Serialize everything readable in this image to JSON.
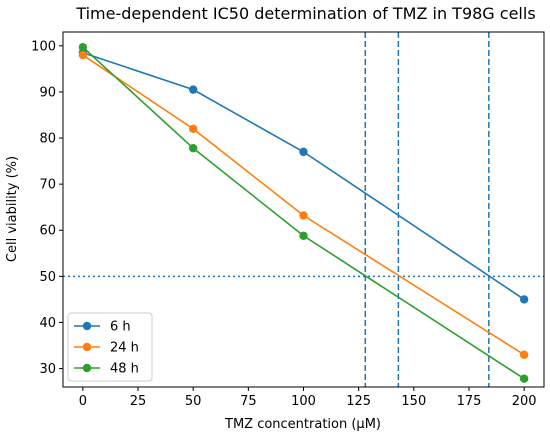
{
  "chart_data": {
    "type": "line",
    "title": "Time-dependent IC50 determination of TMZ in T98G cells",
    "xlabel": "TMZ concentration (µM)",
    "ylabel": "Cell viability (%)",
    "xlim": [
      -9,
      209
    ],
    "ylim": [
      26,
      103
    ],
    "xticks": [
      0,
      25,
      50,
      75,
      100,
      125,
      150,
      175,
      200
    ],
    "yticks": [
      30,
      40,
      50,
      60,
      70,
      80,
      90,
      100
    ],
    "x": [
      0,
      50,
      100,
      200
    ],
    "series": [
      {
        "name": "6 h",
        "color": "#1f77b4",
        "values": [
          98.5,
          90.5,
          77,
          45
        ]
      },
      {
        "name": "24 h",
        "color": "#ff7f0e",
        "values": [
          98,
          82,
          63.2,
          33
        ]
      },
      {
        "name": "48 h",
        "color": "#2ca02c",
        "values": [
          99.7,
          77.8,
          58.8,
          27.8
        ]
      }
    ],
    "reference_lines": {
      "horizontal": [
        {
          "y": 50,
          "style": "dotted",
          "color": "#1f77b4"
        }
      ],
      "vertical": [
        {
          "x": 128,
          "style": "dashed",
          "color": "#1f77b4"
        },
        {
          "x": 143,
          "style": "dashed",
          "color": "#1f77b4"
        },
        {
          "x": 184,
          "style": "dashed",
          "color": "#1f77b4"
        }
      ]
    },
    "legend_position": "lower-left",
    "grid": false
  }
}
